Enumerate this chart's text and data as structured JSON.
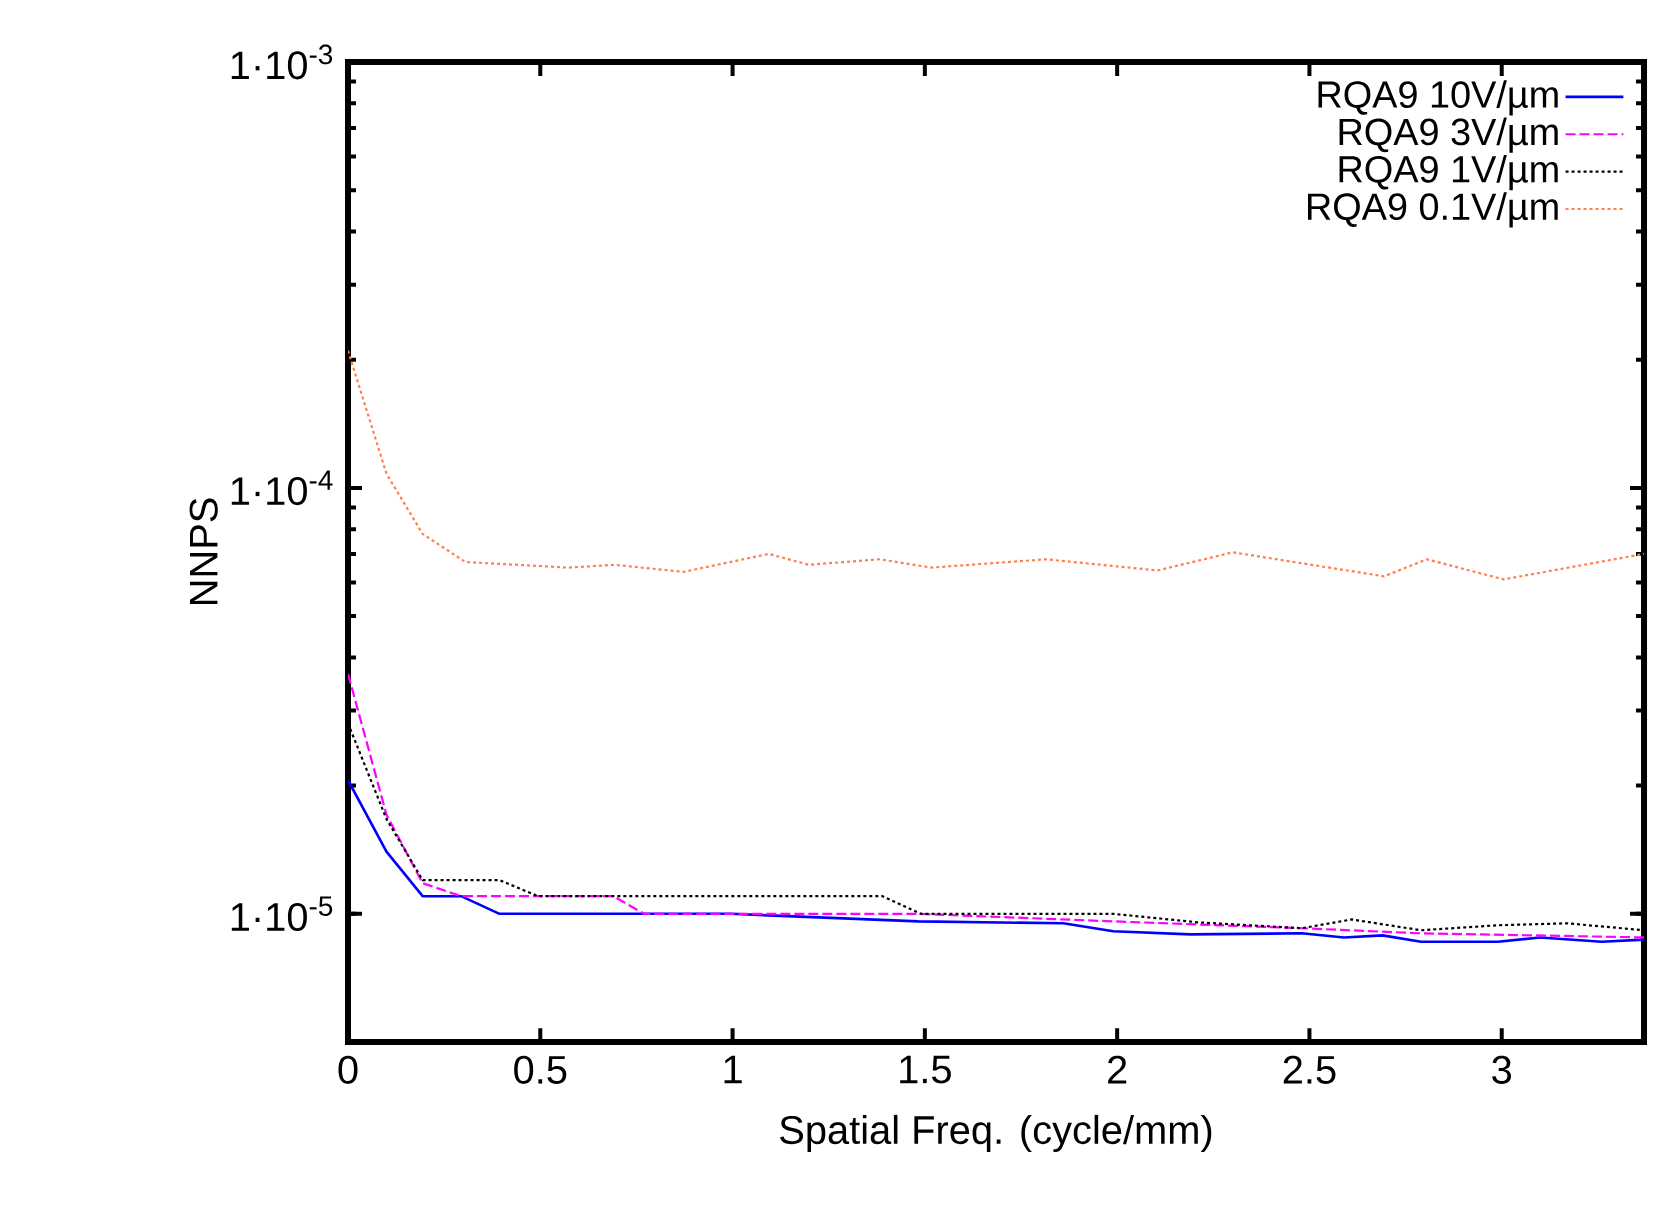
{
  "chart_data": {
    "type": "line",
    "xlabel": "Spatial Freq. (cycle/mm)",
    "ylabel": "NNPS",
    "log": "y",
    "xlim": [
      0,
      3.37
    ],
    "ylim": [
      5e-06,
      0.001
    ],
    "xticks": [
      0,
      0.5,
      1,
      1.5,
      2,
      2.5,
      3
    ],
    "yticks": [
      {
        "value": 1e-05,
        "label": "1·10$^{-5}$"
      },
      {
        "value": 0.0001,
        "label": "1·10$^{-4}$"
      },
      {
        "value": 0.001,
        "label": "1·10$^{-3}$"
      }
    ],
    "grid": false,
    "legend": "top right",
    "marker": "none",
    "series": [
      {
        "name": "RQA9 10V/µm",
        "color": "#0000ff",
        "line_style": "solid",
        "x": [
          0,
          0.1,
          0.194,
          0.294,
          0.394,
          0.994,
          1.483,
          1.86,
          1.99,
          2.19,
          2.48,
          2.59,
          2.69,
          2.79,
          2.99,
          3.1,
          3.26,
          3.37
        ],
        "values": [
          2.06e-05,
          1.4e-05,
          1.1e-05,
          1.1e-05,
          1e-05,
          1e-05,
          9.6e-06,
          9.5e-06,
          9.1e-06,
          8.95e-06,
          9e-06,
          8.8e-06,
          8.9e-06,
          8.6e-06,
          8.6e-06,
          8.8e-06,
          8.6e-06,
          8.7e-06
        ]
      },
      {
        "name": "RQA9  3V/µm",
        "color": "#ff00ff",
        "line_style": "dashed",
        "x": [
          0,
          0.1,
          0.194,
          0.294,
          0.69,
          0.77,
          1.48,
          1.99,
          2.48,
          2.79,
          3.37
        ],
        "values": [
          3.66e-05,
          1.71e-05,
          1.18e-05,
          1.1e-05,
          1.1e-05,
          1e-05,
          1e-05,
          9.6e-06,
          9.25e-06,
          9e-06,
          8.8e-06
        ]
      },
      {
        "name": "RQA9  1V/µm",
        "color": "#000000",
        "line_style": "dotted",
        "x": [
          0,
          0.1,
          0.194,
          0.394,
          0.494,
          1.39,
          1.49,
          1.99,
          2.21,
          2.48,
          2.61,
          2.79,
          2.99,
          3.17,
          3.37
        ],
        "values": [
          2.8e-05,
          1.67e-05,
          1.2e-05,
          1.2e-05,
          1.1e-05,
          1.1e-05,
          1e-05,
          1e-05,
          9.55e-06,
          9.25e-06,
          9.7e-06,
          9.15e-06,
          9.4e-06,
          9.5e-06,
          9.15e-06
        ]
      },
      {
        "name": "RQA9 0.1V/µm",
        "color": "#ff7f50",
        "line_style": "dotted",
        "x": [
          0,
          0.1,
          0.194,
          0.305,
          0.572,
          0.694,
          0.872,
          1.094,
          1.198,
          1.383,
          1.516,
          1.816,
          2.105,
          2.301,
          2.694,
          2.805,
          3.005,
          3.37
        ],
        "values": [
          0.00021,
          0.000108,
          7.8e-05,
          6.7e-05,
          6.5e-05,
          6.6e-05,
          6.35e-05,
          7e-05,
          6.6e-05,
          6.8e-05,
          6.5e-05,
          6.8e-05,
          6.4e-05,
          7.06e-05,
          6.2e-05,
          6.8e-05,
          6.1e-05,
          7e-05
        ]
      }
    ]
  }
}
